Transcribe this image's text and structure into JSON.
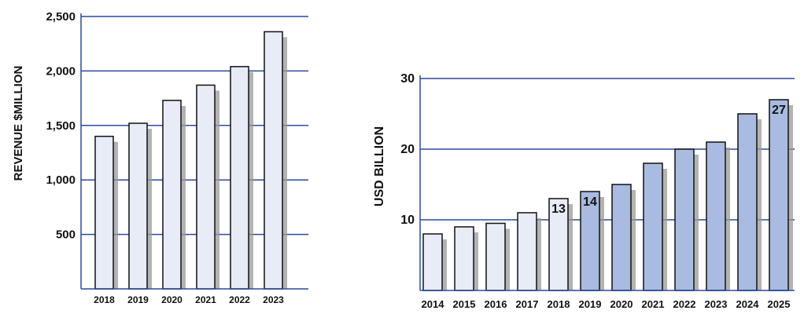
{
  "colors": {
    "gridline": "#2b4a9e",
    "axis": "#2b4a9e",
    "bar_light": "#e7ecf7",
    "bar_medium": "#a9bbe0",
    "bar_outline": "#111111",
    "bar_shadow": "#9a9a9a",
    "text": "#111111"
  },
  "chart_data": [
    {
      "type": "bar",
      "ylabel": "REVENUE $MILLION",
      "xlabel": "",
      "ylim": [
        0,
        2500
      ],
      "yticks": [
        500,
        1000,
        1500,
        2000,
        2500
      ],
      "ytick_labels": [
        "500",
        "1,000",
        "1,500",
        "2,000",
        "2,500"
      ],
      "grid": true,
      "categories": [
        "2018",
        "2019",
        "2020",
        "2021",
        "2022",
        "2023"
      ],
      "values": [
        1400,
        1520,
        1730,
        1870,
        2040,
        2360
      ],
      "bar_styles": [
        "light",
        "light",
        "light",
        "light",
        "light",
        "light"
      ],
      "data_labels": [
        "",
        "",
        "",
        "",
        "",
        ""
      ]
    },
    {
      "type": "bar",
      "ylabel": "USD BILLION",
      "xlabel": "",
      "ylim": [
        0,
        30
      ],
      "yticks": [
        10,
        20,
        30
      ],
      "ytick_labels": [
        "10",
        "20",
        "30"
      ],
      "grid": true,
      "categories": [
        "2014",
        "2015",
        "2016",
        "2017",
        "2018",
        "2019",
        "2020",
        "2021",
        "2022",
        "2023",
        "2024",
        "2025"
      ],
      "values": [
        8,
        9,
        9.5,
        11,
        13,
        14,
        15,
        18,
        20,
        21,
        25,
        27
      ],
      "bar_styles": [
        "light",
        "light",
        "light",
        "light",
        "light",
        "medium",
        "medium",
        "medium",
        "medium",
        "medium",
        "medium",
        "medium"
      ],
      "data_labels": [
        "",
        "",
        "",
        "",
        "13",
        "14",
        "",
        "",
        "",
        "",
        "",
        "27"
      ]
    }
  ]
}
